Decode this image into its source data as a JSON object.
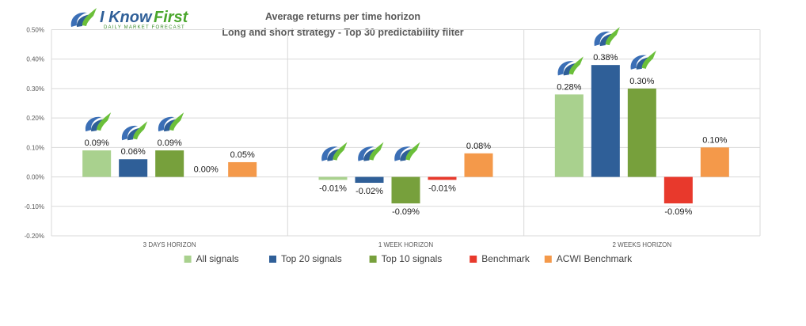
{
  "brand": {
    "name_part1": "I Know",
    "name_part2": "First",
    "tagline": "Daily Market Forecast"
  },
  "chart_data": {
    "type": "bar",
    "title": "Average returns per time horizon",
    "subtitle": "Long and short strategy - Top 30 predictability filter",
    "categories": [
      "3 DAYS HORIZON",
      "1 WEEK HORIZON",
      "2 WEEKS HORIZON"
    ],
    "series": [
      {
        "name": "All signals",
        "color": "#a9d18e",
        "values": [
          0.09,
          -0.01,
          0.28
        ],
        "labels": [
          "0.09%",
          "-0.01%",
          "0.28%"
        ],
        "icon": [
          true,
          true,
          true
        ]
      },
      {
        "name": "Top 20 signals",
        "color": "#2f5f98",
        "values": [
          0.06,
          -0.02,
          0.38
        ],
        "labels": [
          "0.06%",
          "-0.02%",
          "0.38%"
        ],
        "icon": [
          true,
          true,
          true
        ]
      },
      {
        "name": "Top 10 signals",
        "color": "#77a03c",
        "values": [
          0.09,
          -0.09,
          0.3
        ],
        "labels": [
          "0.09%",
          "-0.09%",
          "0.30%"
        ],
        "icon": [
          true,
          true,
          true
        ]
      },
      {
        "name": "Benchmark",
        "color": "#e8392c",
        "values": [
          0.0,
          -0.01,
          -0.09
        ],
        "labels": [
          "0.00%",
          "-0.01%",
          "-0.09%"
        ],
        "icon": [
          false,
          false,
          false
        ]
      },
      {
        "name": "ACWI Benchmark",
        "color": "#f4994a",
        "values": [
          0.05,
          0.08,
          0.1
        ],
        "labels": [
          "0.05%",
          "0.08%",
          "0.10%"
        ],
        "icon": [
          false,
          false,
          false
        ]
      }
    ],
    "y_ticks": [
      "0.50%",
      "0.40%",
      "0.30%",
      "0.20%",
      "0.10%",
      "0.00%",
      "-0.10%",
      "-0.20%"
    ],
    "y_tick_values": [
      0.5,
      0.4,
      0.3,
      0.2,
      0.1,
      0.0,
      -0.1,
      -0.2
    ],
    "ylim": [
      -0.2,
      0.5
    ],
    "unit": "%",
    "grid": true,
    "legend_position": "bottom",
    "grid_color": "#d9d9d9"
  }
}
